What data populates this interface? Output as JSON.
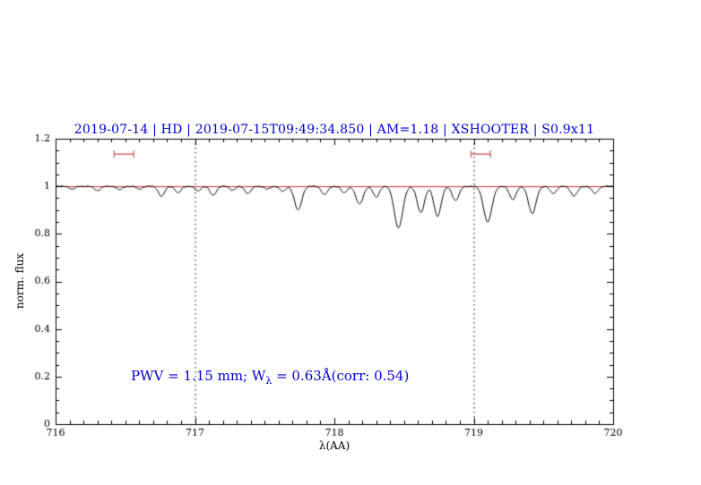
{
  "title": "2019-07-14 | HD | 2019-07-15T09:49:34.850 | AM=1.18 | XSHOOTER | S0.9x11",
  "axes": {
    "xlabel": "λ(AA)",
    "ylabel": "norm. flux"
  },
  "annotation": {
    "prefix": "PWV  =  1.15  mm;  W",
    "sub": "λ",
    "suffix": "  =  0.63Å(corr: 0.54)"
  },
  "colors": {
    "accent_blue": "#0000cd",
    "continuum_red": "#c83232",
    "marker_red": "#d96a6a",
    "spectrum_black": "#000000",
    "frame_black": "#000000"
  },
  "chart_data": {
    "type": "line",
    "title": "2019-07-14 | HD | 2019-07-15T09:49:34.850 | AM=1.18 | XSHOOTER | S0.9x11",
    "xlabel": "λ(AA)",
    "ylabel": "norm. flux",
    "x_range": [
      716,
      720
    ],
    "y_range": [
      0,
      1.2
    ],
    "x_ticks": [
      716,
      717,
      718,
      719,
      720
    ],
    "x_tick_labels": [
      "716",
      "717",
      "718",
      "719",
      "720"
    ],
    "x_minor_step": 0.1,
    "y_ticks": [
      0,
      0.2,
      0.4,
      0.6,
      0.8,
      1,
      1.2
    ],
    "y_tick_labels": [
      "0",
      "0.2",
      "0.4",
      "0.6",
      "0.8",
      "1",
      "1.2"
    ],
    "y_minor_step": 0.05,
    "grid": "off",
    "dotted_vlines": [
      717,
      719
    ],
    "continuum": {
      "y": 1.0
    },
    "band_markers": [
      {
        "x1": 716.42,
        "x2": 716.56,
        "y": 1.135
      },
      {
        "x1": 718.98,
        "x2": 719.12,
        "y": 1.135
      }
    ],
    "spectrum": {
      "model": "continuum minus gaussian absorption lines",
      "continuum_level": 1.0,
      "noise_amplitude": 0.002,
      "absorption_lines": [
        {
          "center": 716.12,
          "depth": 0.012,
          "sigma": 0.02
        },
        {
          "center": 716.3,
          "depth": 0.018,
          "sigma": 0.022
        },
        {
          "center": 716.46,
          "depth": 0.014,
          "sigma": 0.02
        },
        {
          "center": 716.6,
          "depth": 0.012,
          "sigma": 0.02
        },
        {
          "center": 716.76,
          "depth": 0.042,
          "sigma": 0.022
        },
        {
          "center": 716.88,
          "depth": 0.028,
          "sigma": 0.02
        },
        {
          "center": 717.02,
          "depth": 0.02,
          "sigma": 0.02
        },
        {
          "center": 717.13,
          "depth": 0.038,
          "sigma": 0.022
        },
        {
          "center": 717.27,
          "depth": 0.016,
          "sigma": 0.02
        },
        {
          "center": 717.38,
          "depth": 0.03,
          "sigma": 0.022
        },
        {
          "center": 717.52,
          "depth": 0.012,
          "sigma": 0.02
        },
        {
          "center": 717.63,
          "depth": 0.022,
          "sigma": 0.02
        },
        {
          "center": 717.74,
          "depth": 0.1,
          "sigma": 0.026
        },
        {
          "center": 717.93,
          "depth": 0.035,
          "sigma": 0.022
        },
        {
          "center": 718.07,
          "depth": 0.028,
          "sigma": 0.02
        },
        {
          "center": 718.18,
          "depth": 0.075,
          "sigma": 0.026
        },
        {
          "center": 718.3,
          "depth": 0.045,
          "sigma": 0.022
        },
        {
          "center": 718.46,
          "depth": 0.175,
          "sigma": 0.03
        },
        {
          "center": 718.62,
          "depth": 0.11,
          "sigma": 0.026
        },
        {
          "center": 718.74,
          "depth": 0.125,
          "sigma": 0.026
        },
        {
          "center": 718.87,
          "depth": 0.06,
          "sigma": 0.024
        },
        {
          "center": 719.1,
          "depth": 0.15,
          "sigma": 0.03
        },
        {
          "center": 719.28,
          "depth": 0.055,
          "sigma": 0.024
        },
        {
          "center": 719.42,
          "depth": 0.115,
          "sigma": 0.027
        },
        {
          "center": 719.57,
          "depth": 0.03,
          "sigma": 0.022
        },
        {
          "center": 719.72,
          "depth": 0.04,
          "sigma": 0.024
        },
        {
          "center": 719.87,
          "depth": 0.03,
          "sigma": 0.022
        }
      ]
    },
    "annotation_text": "PWV = 1.15 mm; W_λ = 0.63Å(corr: 0.54)",
    "legend": "none"
  }
}
